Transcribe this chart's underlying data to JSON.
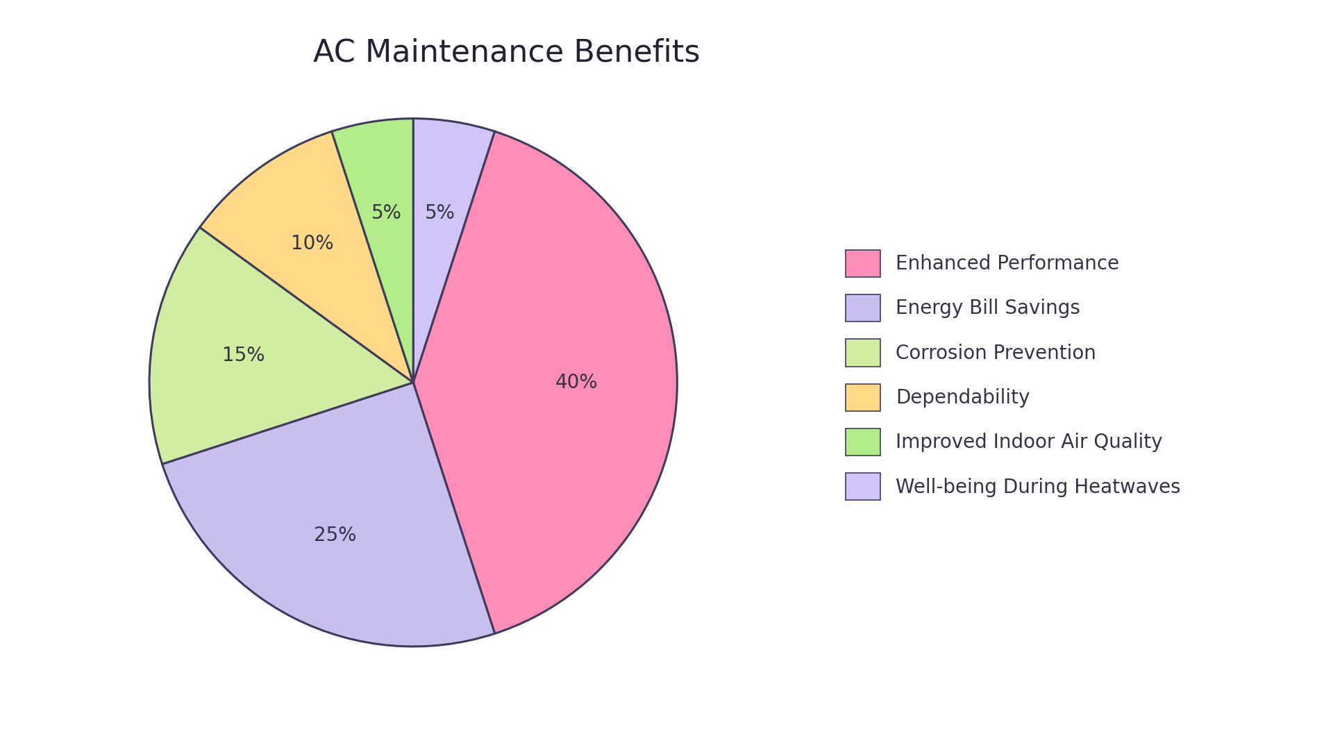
{
  "title": "AC Maintenance Benefits",
  "labels": [
    "Enhanced Performance",
    "Energy Bill Savings",
    "Corrosion Prevention",
    "Dependability",
    "Improved Indoor Air Quality",
    "Well-being During Heatwaves"
  ],
  "values": [
    40,
    25,
    15,
    10,
    5,
    5
  ],
  "colors": [
    "#FF8DB8",
    "#C8BFEE",
    "#D0ECA0",
    "#FFD888",
    "#B0EC88",
    "#D0C4F8"
  ],
  "background_color": "#FFFFFF",
  "title_fontsize": 32,
  "label_fontsize": 20,
  "legend_fontsize": 20,
  "edge_color": "#3D3B5E",
  "edge_linewidth": 2.2,
  "startangle": 90,
  "ordered_values": [
    5,
    40,
    25,
    15,
    10,
    5
  ],
  "ordered_colors": [
    "#D0C4F8",
    "#FF8DB8",
    "#C8BFEE",
    "#D0ECA0",
    "#FFD888",
    "#B0EC88"
  ],
  "ordered_pcts": [
    "5%",
    "40%",
    "25%",
    "15%",
    "10%",
    "5%"
  ]
}
